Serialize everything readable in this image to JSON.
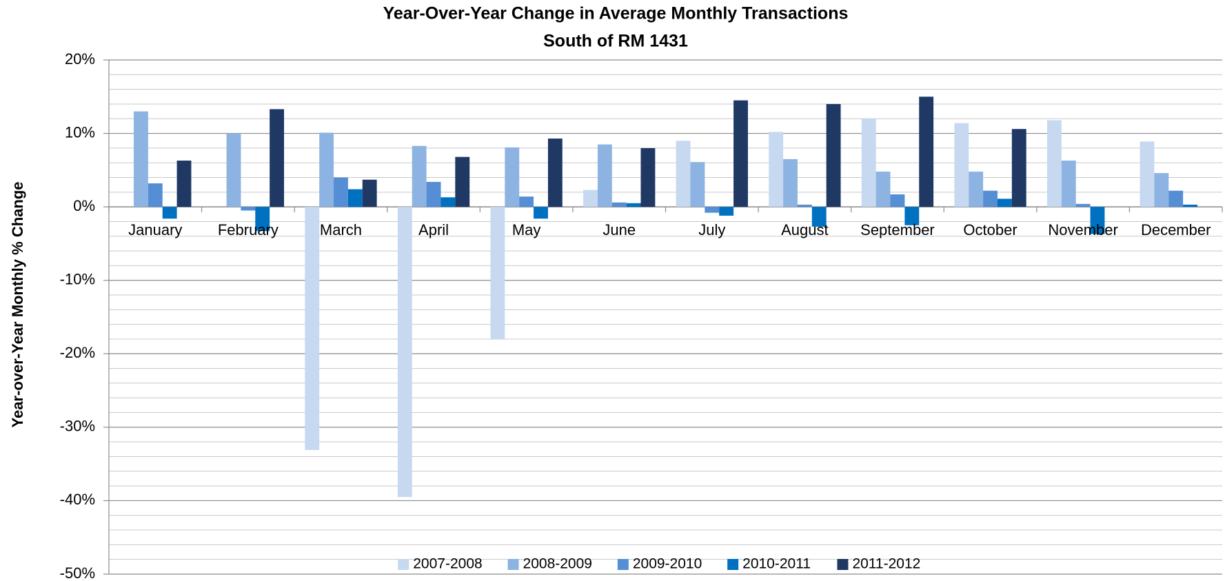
{
  "chart_data": {
    "type": "bar",
    "title": "Year-Over-Year Change in Average Monthly Transactions",
    "subtitle": "South of RM 1431",
    "y_label": "Year-over-Year Monthly % Change",
    "categories": [
      "January",
      "February",
      "March",
      "April",
      "May",
      "June",
      "July",
      "August",
      "September",
      "October",
      "November",
      "December"
    ],
    "series": [
      {
        "name": "2007-2008",
        "color": "#c6d9f0",
        "values": [
          null,
          null,
          -33.1,
          -39.5,
          -18.0,
          2.3,
          9.0,
          10.2,
          12.0,
          11.4,
          11.8,
          8.9
        ]
      },
      {
        "name": "2008-2009",
        "color": "#8db3e2",
        "values": [
          13.0,
          10.0,
          10.1,
          8.3,
          8.1,
          8.5,
          6.1,
          6.5,
          4.8,
          4.8,
          6.3,
          4.6
        ]
      },
      {
        "name": "2009-2010",
        "color": "#558ed5",
        "values": [
          3.2,
          -0.5,
          4.0,
          3.4,
          1.4,
          0.6,
          -0.8,
          0.3,
          1.7,
          2.2,
          0.4,
          2.2
        ]
      },
      {
        "name": "2010-2011",
        "color": "#0070c0",
        "values": [
          -1.6,
          -3.3,
          2.4,
          1.3,
          -1.6,
          0.5,
          -1.2,
          -2.7,
          -2.5,
          1.1,
          -3.7,
          0.3
        ]
      },
      {
        "name": "2011-2012",
        "color": "#1f3864",
        "values": [
          6.3,
          13.3,
          3.7,
          6.8,
          9.3,
          8.0,
          14.5,
          14.0,
          15.0,
          10.6,
          null,
          null
        ]
      }
    ],
    "ylim": [
      -50,
      20
    ],
    "yticks": [
      {
        "value": -50,
        "label": "-50%"
      },
      {
        "value": -40,
        "label": "-40%"
      },
      {
        "value": -30,
        "label": "-30%"
      },
      {
        "value": -20,
        "label": "-20%"
      },
      {
        "value": -10,
        "label": "-10%"
      },
      {
        "value": 0,
        "label": "0%"
      },
      {
        "value": 10,
        "label": "10%"
      },
      {
        "value": 20,
        "label": "20%"
      }
    ],
    "grid": true,
    "legend": "bottom"
  }
}
